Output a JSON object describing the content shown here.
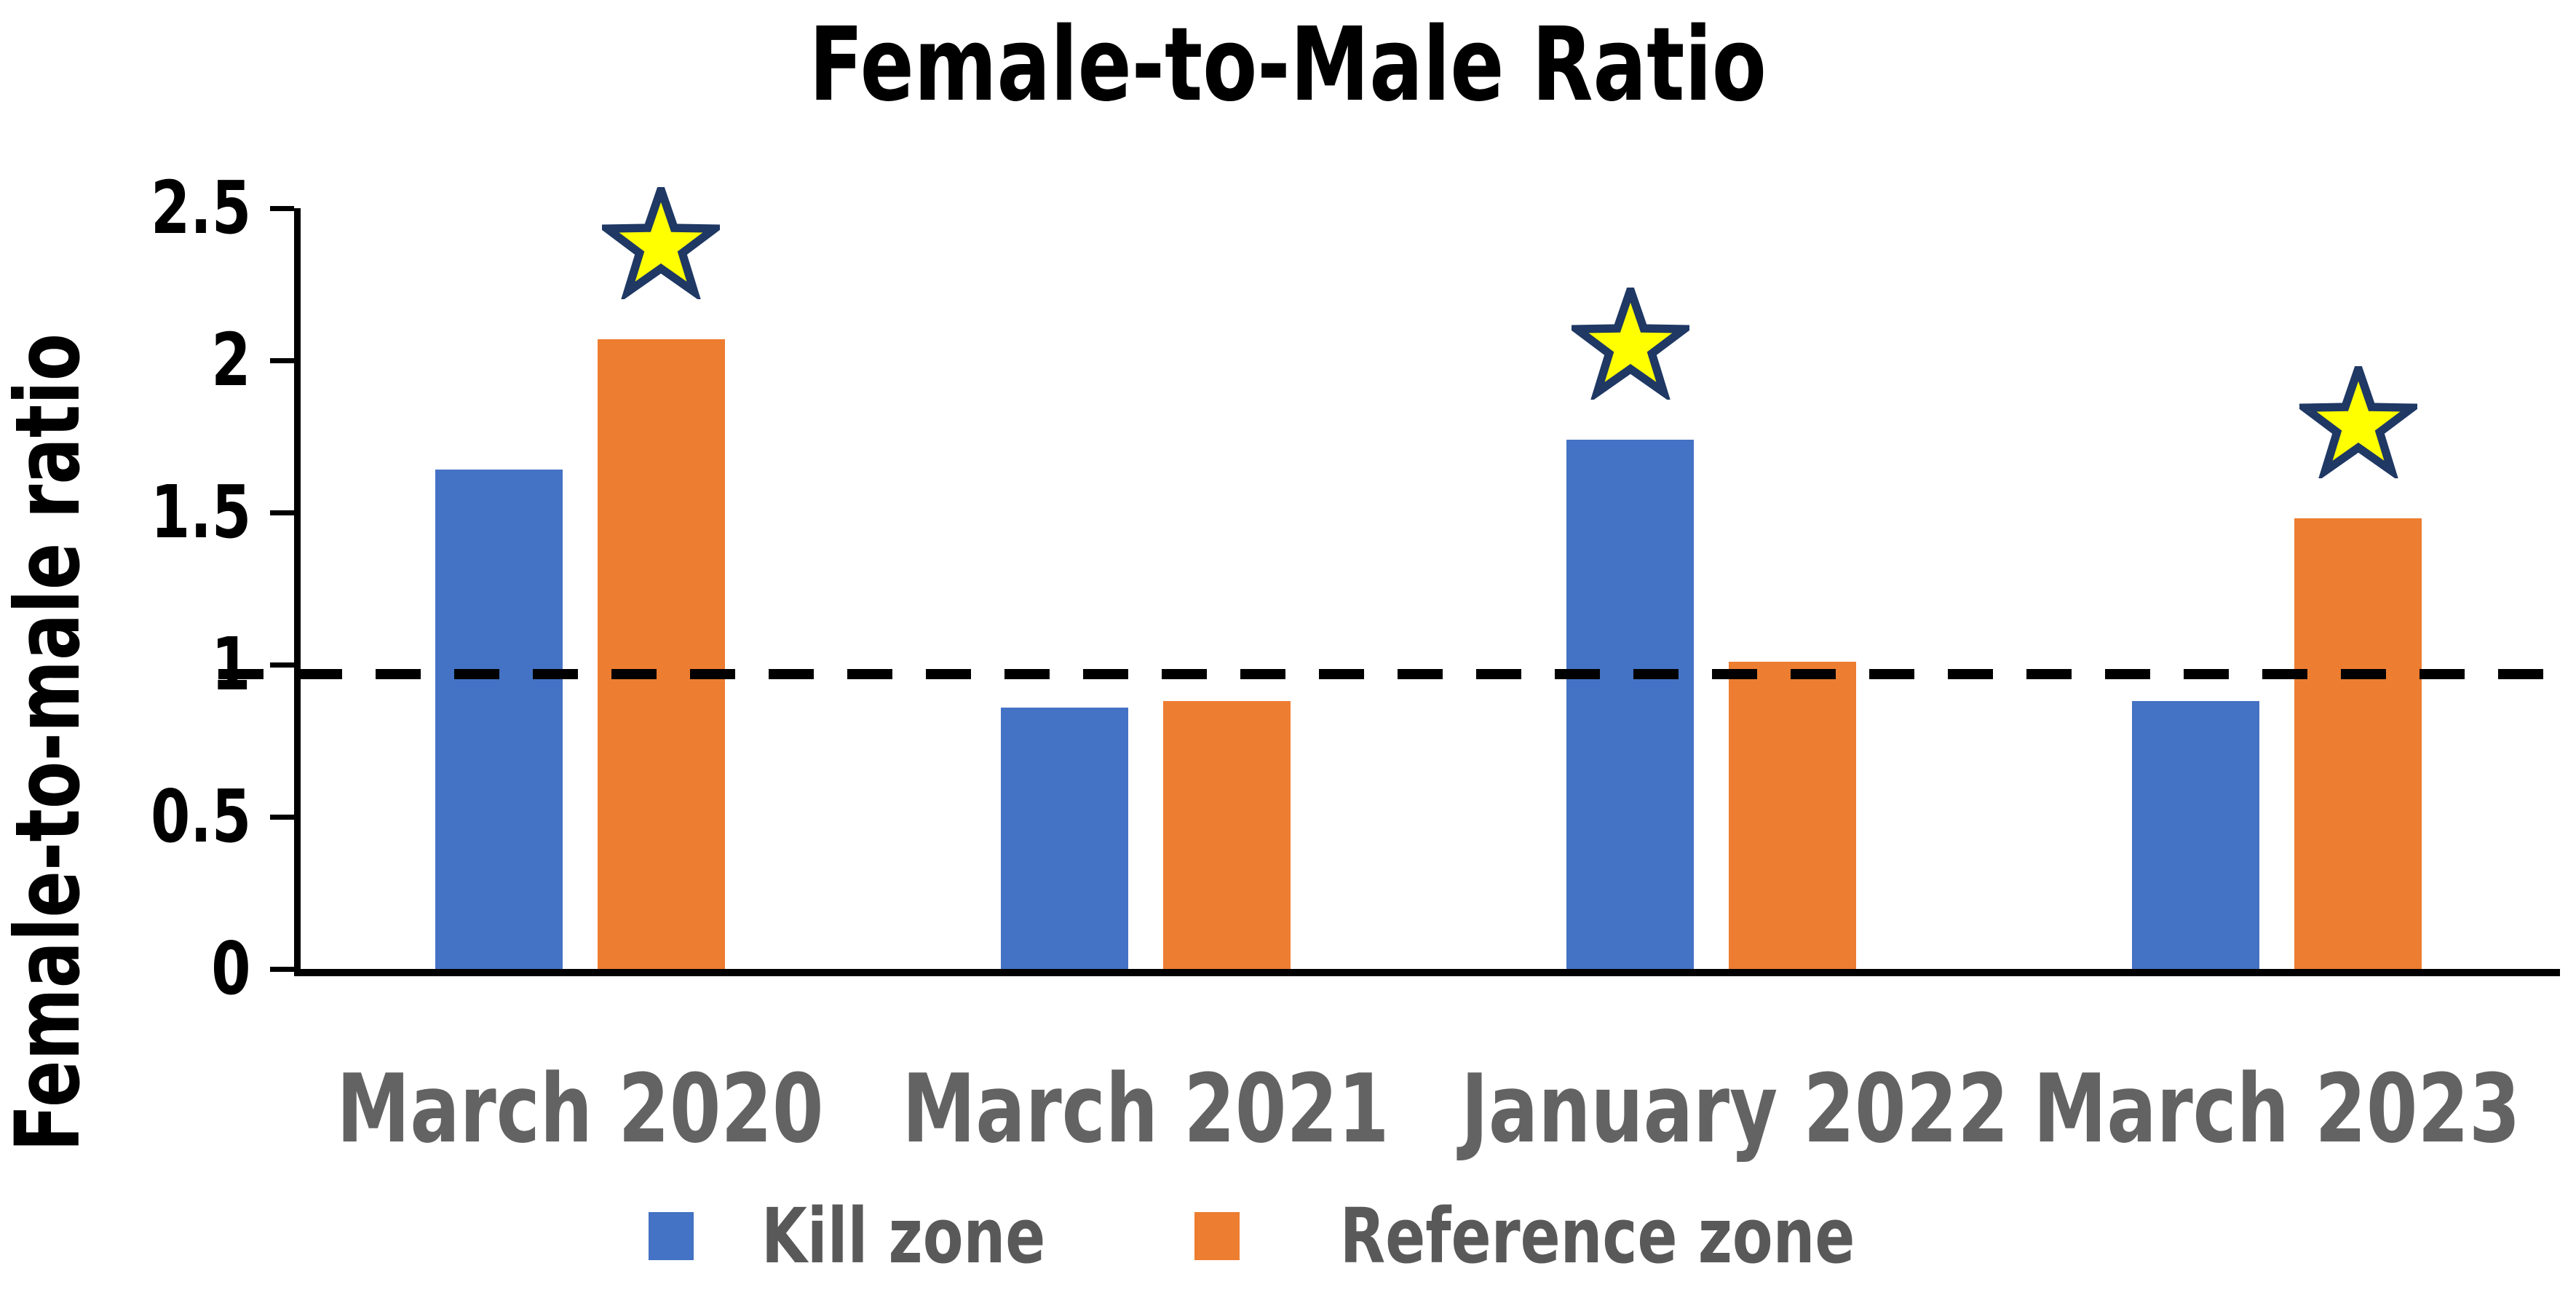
{
  "title": "Female-to-Male Ratio",
  "y_axis": {
    "label": "Female-to-male ratio",
    "ticks": [
      "2.5",
      "2",
      "1.5",
      "1",
      "0.5",
      "0"
    ],
    "tick_values": [
      2.5,
      2,
      1.5,
      1,
      0.5,
      0
    ]
  },
  "chart_data": {
    "type": "bar",
    "title": "Female-to-Male Ratio",
    "categories": [
      "March 2020",
      "March 2021",
      "January 2022",
      "March 2023"
    ],
    "series": [
      {
        "name": "Kill zone",
        "color": "#4472C4",
        "values": [
          1.64,
          0.86,
          1.74,
          0.88
        ]
      },
      {
        "name": "Reference zone",
        "color": "#ED7D31",
        "values": [
          2.07,
          0.88,
          1.01,
          1.48
        ]
      }
    ],
    "xlabel": "",
    "ylabel": "Female-to-male ratio",
    "ylim": [
      0,
      2.5
    ],
    "grid": false,
    "legend_position": "bottom",
    "reference_line": 0.97,
    "reference_line_style": "dashed",
    "significance_stars": [
      {
        "category": "March 2020",
        "series": "Reference zone"
      },
      {
        "category": "January 2022",
        "series": "Kill zone"
      },
      {
        "category": "March 2023",
        "series": "Reference zone"
      }
    ]
  },
  "legend": [
    {
      "label": "Kill zone",
      "color": "#4472C4"
    },
    {
      "label": "Reference zone",
      "color": "#ED7D31"
    }
  ],
  "colors": {
    "kill_zone": "#4472C4",
    "reference_zone": "#ED7D31",
    "axis": "#000000",
    "title_text": "#000000",
    "category_text": "#636363",
    "legend_text": "#595959",
    "star_fill": "#FFFF00",
    "star_stroke": "#1F3864"
  }
}
